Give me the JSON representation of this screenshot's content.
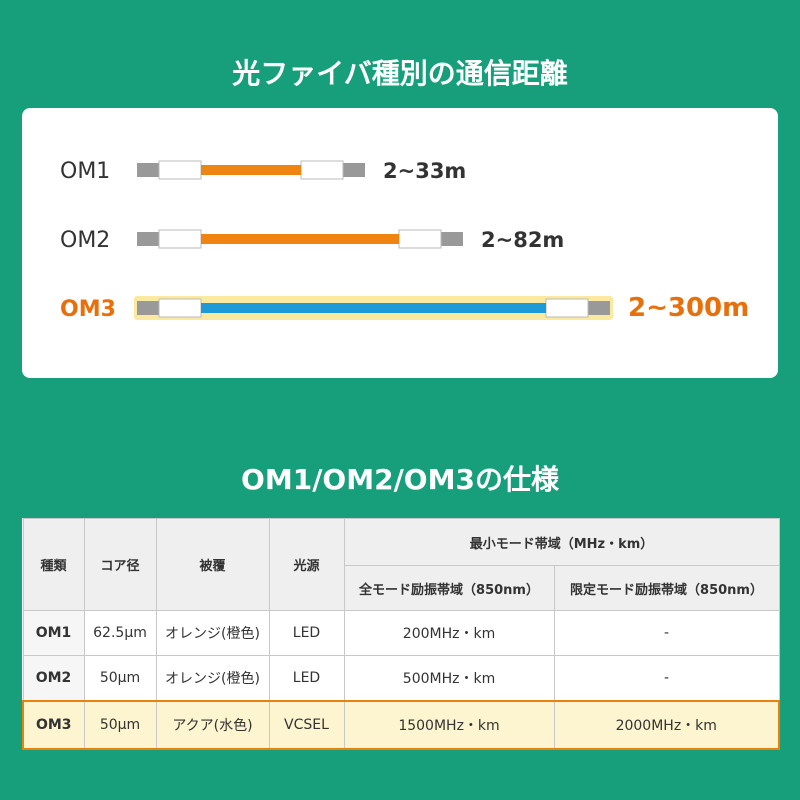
{
  "header": {
    "title": "光ファイバ種別の通信距離"
  },
  "cables": [
    {
      "label": "OM1",
      "range": "2~33m"
    },
    {
      "label": "OM2",
      "range": "2~82m"
    },
    {
      "label": "OM3",
      "range": "2~300m"
    }
  ],
  "spec": {
    "title": "OM1/OM2/OM3の仕様",
    "table": {
      "headers": [
        "種類",
        "コア径",
        "被覆",
        "光源",
        "最小モード帯域（MHz・km）"
      ],
      "subheaders": [
        "全モード励振帯域（850nm）",
        "限定モード励振帯域（850nm）"
      ],
      "rows": [
        [
          "OM1",
          "62.5μm",
          "オレンジ(橙色)",
          "LED",
          "200MHz・km",
          "-"
        ],
        [
          "OM2",
          "50μm",
          "オレンジ(橙色)",
          "LED",
          "500MHz・km",
          "-"
        ],
        [
          "OM3",
          "50μm",
          "アクア(水色)",
          "VCSEL",
          "1500MHz・km",
          "2000MHz・km"
        ]
      ]
    }
  }
}
